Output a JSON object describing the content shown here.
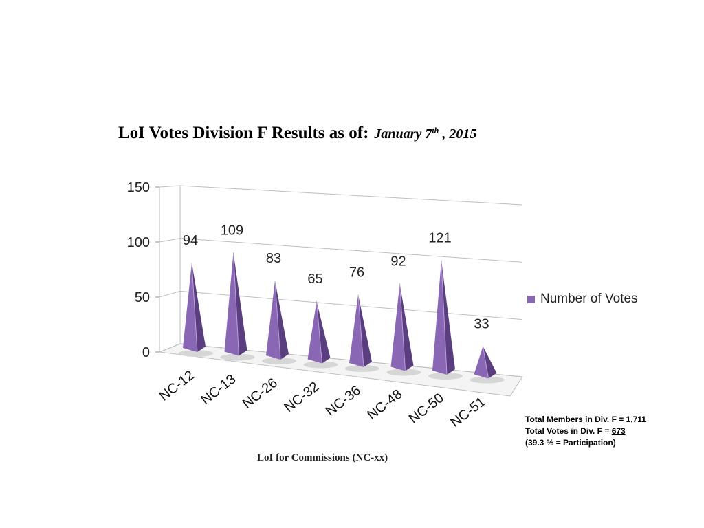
{
  "title": {
    "main": "LoI Votes Division F Results as of:",
    "date_month_day": "January 7",
    "date_suffix": "th",
    "date_year": " , 2015"
  },
  "colors": {
    "bar": "#8a67b4",
    "bar_dark": "#5a3e80",
    "bar_light": "#b9a0d8"
  },
  "chart_data": {
    "type": "bar",
    "categories": [
      "NC-12",
      "NC-13",
      "NC-26",
      "NC-32",
      "NC-36",
      "NC-48",
      "NC-50",
      "NC-51"
    ],
    "series": [
      {
        "name": "Number of Votes",
        "values": [
          94,
          109,
          83,
          65,
          76,
          92,
          121,
          33
        ]
      }
    ],
    "xlabel": "LoI for Commissions (NC-xx)",
    "ylabel": "",
    "ylim": [
      0,
      150
    ],
    "yticks": [
      0,
      50,
      100,
      150
    ],
    "data_labels": [
      "94",
      "109",
      "83",
      "65",
      "76",
      "92",
      "121",
      "33"
    ],
    "grid": true,
    "legend": "right",
    "style": "3d-pyramid"
  },
  "legend": {
    "label": "Number of Votes"
  },
  "notes": {
    "members_label": "Total Members in Div. F = ",
    "members_value": "1,711",
    "votes_label": "Total Votes in Div. F = ",
    "votes_value": "673",
    "participation": "(39.3 % = Participation)"
  }
}
